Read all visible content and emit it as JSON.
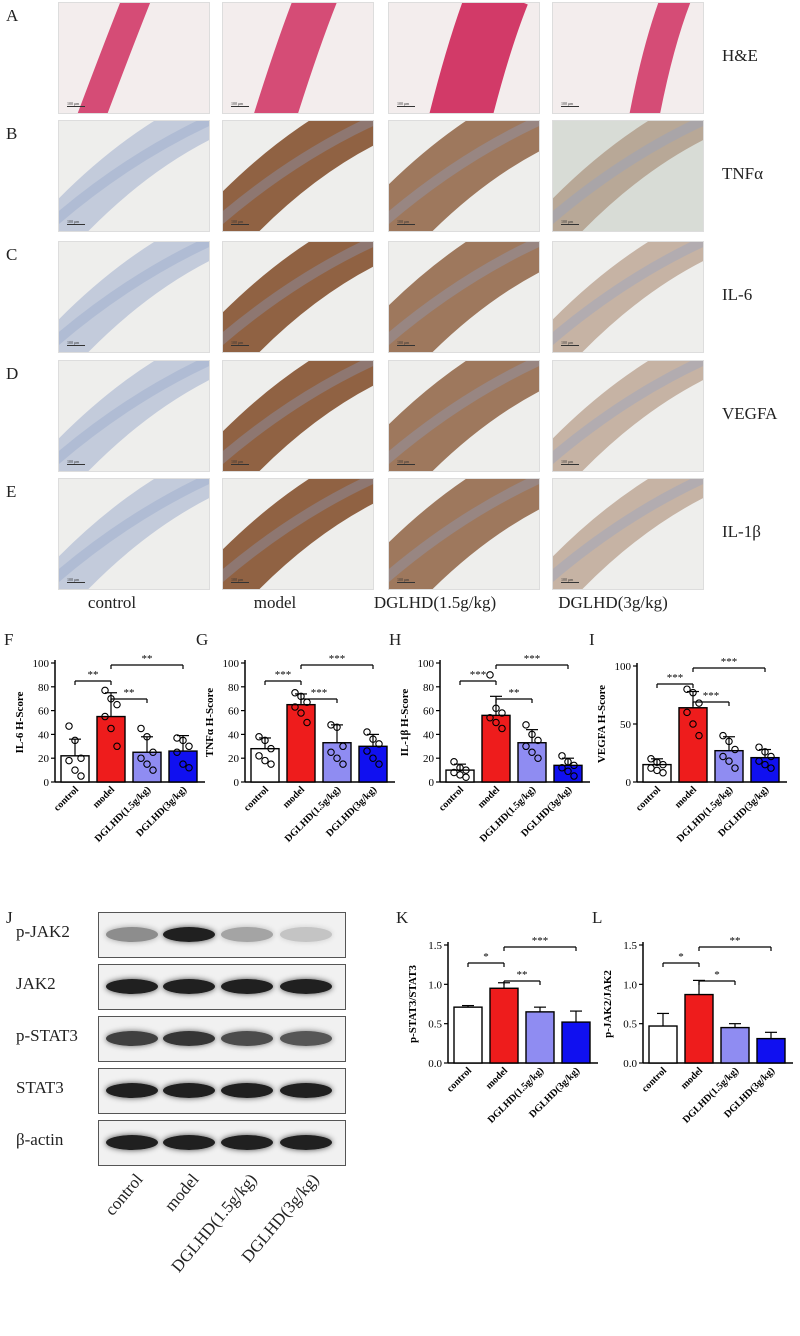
{
  "histology": {
    "rows": [
      {
        "letter": "A",
        "stain": "H&E"
      },
      {
        "letter": "B",
        "stain": "TNFα"
      },
      {
        "letter": "C",
        "stain": "IL-6"
      },
      {
        "letter": "D",
        "stain": "VEGFA"
      },
      {
        "letter": "E",
        "stain": "IL-1β"
      }
    ],
    "groups": [
      "control",
      "model",
      "DGLHD(1.5g/kg)",
      "DGLHD(3g/kg)"
    ],
    "scale_bar": "100 μm"
  },
  "colors": {
    "control": "#ffffff",
    "model": "#ee1c1c",
    "low_dose": "#8f8cf2",
    "high_dose": "#1010f0",
    "he_stain": "#d23a68",
    "ihc_brown": "#8a5a3a",
    "ihc_blue": "#8da0c8"
  },
  "chart_data": [
    {
      "panel": "F",
      "type": "bar",
      "ylabel": "IL-6 H-Score",
      "categories": [
        "control",
        "model",
        "DGLHD(1.5g/kg)",
        "DGLHD(3g/kg)"
      ],
      "values": [
        22,
        55,
        25,
        26
      ],
      "errors": [
        14,
        20,
        13,
        13
      ],
      "points": [
        [
          47,
          35,
          20,
          18,
          10,
          5
        ],
        [
          77,
          70,
          65,
          55,
          45,
          30
        ],
        [
          45,
          38,
          25,
          20,
          15,
          10
        ],
        [
          37,
          35,
          30,
          25,
          15,
          12
        ]
      ],
      "ylim": [
        0,
        100
      ],
      "yticks": [
        0,
        20,
        40,
        60,
        80,
        100
      ],
      "significance": [
        {
          "from": 0,
          "to": 1,
          "label": "**"
        },
        {
          "from": 1,
          "to": 2,
          "label": "**"
        },
        {
          "from": 1,
          "to": 3,
          "label": "**"
        }
      ]
    },
    {
      "panel": "G",
      "type": "bar",
      "ylabel": "TNFα H-Score",
      "categories": [
        "control",
        "model",
        "DGLHD(1.5g/kg)",
        "DGLHD(3g/kg)"
      ],
      "values": [
        28,
        65,
        33,
        30
      ],
      "errors": [
        9,
        9,
        15,
        10
      ],
      "points": [
        [
          38,
          35,
          28,
          22,
          18,
          15
        ],
        [
          75,
          72,
          67,
          63,
          58,
          50
        ],
        [
          48,
          46,
          30,
          25,
          20,
          15
        ],
        [
          42,
          36,
          32,
          26,
          20,
          15
        ]
      ],
      "ylim": [
        0,
        100
      ],
      "yticks": [
        0,
        20,
        40,
        60,
        80,
        100
      ],
      "significance": [
        {
          "from": 0,
          "to": 1,
          "label": "***"
        },
        {
          "from": 1,
          "to": 2,
          "label": "***"
        },
        {
          "from": 1,
          "to": 3,
          "label": "***"
        }
      ]
    },
    {
      "panel": "H",
      "type": "bar",
      "ylabel": "IL-1β H-Score",
      "categories": [
        "control",
        "model",
        "DGLHD(1.5g/kg)",
        "DGLHD(3g/kg)"
      ],
      "values": [
        10,
        56,
        33,
        14
      ],
      "errors": [
        5,
        16,
        11,
        6
      ],
      "points": [
        [
          17,
          12,
          10,
          8,
          6,
          4
        ],
        [
          90,
          62,
          58,
          54,
          50,
          45
        ],
        [
          48,
          40,
          35,
          30,
          25,
          20
        ],
        [
          22,
          17,
          14,
          12,
          9,
          5
        ]
      ],
      "ylim": [
        0,
        100
      ],
      "yticks": [
        0,
        20,
        40,
        60,
        80,
        100
      ],
      "significance": [
        {
          "from": 0,
          "to": 1,
          "label": "***"
        },
        {
          "from": 1,
          "to": 2,
          "label": "**"
        },
        {
          "from": 1,
          "to": 3,
          "label": "***"
        }
      ]
    },
    {
      "panel": "I",
      "type": "bar",
      "ylabel": "VEGFA H-Score",
      "categories": [
        "control",
        "model",
        "DGLHD(1.5g/kg)",
        "DGLHD(3g/kg)"
      ],
      "values": [
        15,
        64,
        27,
        21
      ],
      "errors": [
        5,
        14,
        12,
        7
      ],
      "points": [
        [
          20,
          17,
          15,
          12,
          10,
          8
        ],
        [
          80,
          77,
          68,
          60,
          50,
          40
        ],
        [
          40,
          35,
          28,
          22,
          18,
          12
        ],
        [
          30,
          26,
          22,
          18,
          15,
          12
        ]
      ],
      "ylim": [
        0,
        100
      ],
      "yticks": [
        0,
        50,
        100
      ],
      "significance": [
        {
          "from": 0,
          "to": 1,
          "label": "***"
        },
        {
          "from": 1,
          "to": 2,
          "label": "***"
        },
        {
          "from": 1,
          "to": 3,
          "label": "***"
        }
      ]
    },
    {
      "panel": "K",
      "type": "bar",
      "ylabel": "p-STAT3/STAT3",
      "categories": [
        "control",
        "model",
        "DGLHD(1.5g/kg)",
        "DGLHD(3g/kg)"
      ],
      "values": [
        0.71,
        0.95,
        0.65,
        0.52
      ],
      "errors": [
        0.02,
        0.07,
        0.06,
        0.14
      ],
      "ylim": [
        0,
        1.5
      ],
      "yticks": [
        0.0,
        0.5,
        1.0,
        1.5
      ],
      "significance": [
        {
          "from": 0,
          "to": 1,
          "label": "*"
        },
        {
          "from": 1,
          "to": 2,
          "label": "**"
        },
        {
          "from": 1,
          "to": 3,
          "label": "***"
        }
      ]
    },
    {
      "panel": "L",
      "type": "bar",
      "ylabel": "p-JAK2/JAK2",
      "categories": [
        "control",
        "model",
        "DGLHD(1.5g/kg)",
        "DGLHD(3g/kg)"
      ],
      "values": [
        0.47,
        0.87,
        0.45,
        0.31
      ],
      "errors": [
        0.16,
        0.18,
        0.05,
        0.08
      ],
      "ylim": [
        0,
        1.5
      ],
      "yticks": [
        0.0,
        0.5,
        1.0,
        1.5
      ],
      "significance": [
        {
          "from": 0,
          "to": 1,
          "label": "*"
        },
        {
          "from": 1,
          "to": 2,
          "label": "*"
        },
        {
          "from": 1,
          "to": 3,
          "label": "**"
        }
      ]
    }
  ],
  "western_blot": {
    "letter": "J",
    "proteins": [
      "p-JAK2",
      "JAK2",
      "p-STAT3",
      "STAT3",
      "β-actin"
    ],
    "band_intensity": [
      [
        0.45,
        0.95,
        0.35,
        0.2
      ],
      [
        0.95,
        0.95,
        0.95,
        0.95
      ],
      [
        0.8,
        0.85,
        0.75,
        0.7
      ],
      [
        0.95,
        0.95,
        0.95,
        0.95
      ],
      [
        0.95,
        0.95,
        0.95,
        0.95
      ]
    ],
    "lanes": [
      "control",
      "model",
      "DGLHD(1.5g/kg)",
      "DGLHD(3g/kg)"
    ]
  }
}
